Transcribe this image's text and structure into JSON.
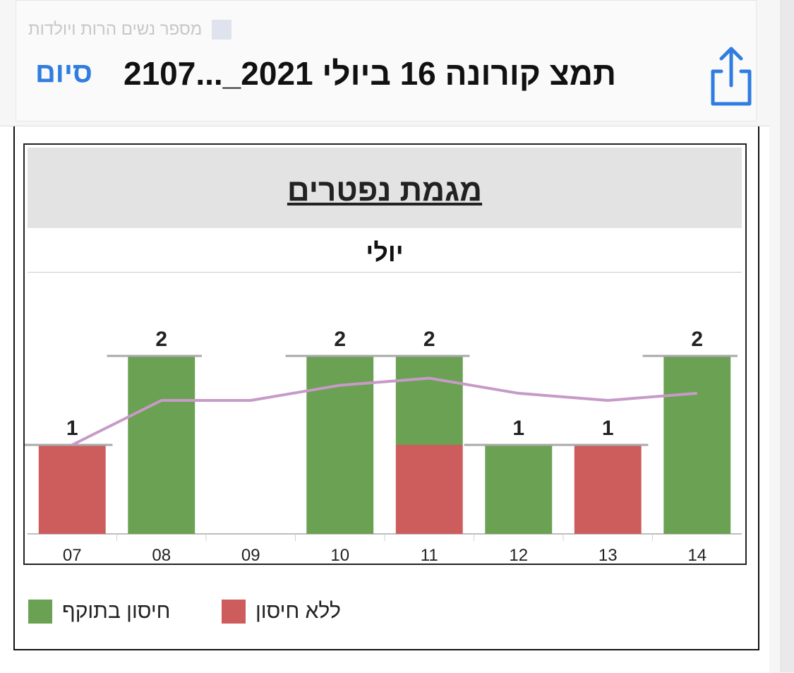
{
  "background": {
    "legend_rows": [
      {
        "label": "מספר נשים הרות ויולדות",
        "color": "#dfe3ee"
      },
      {
        "label": "",
        "color": "#f2c7c7"
      }
    ]
  },
  "header": {
    "done_label": "סיום",
    "title": "תמצ קורונה 16 ביולי 2021_...2107",
    "share_icon": "share-icon"
  },
  "chart_data": {
    "type": "bar",
    "title": "מגמת נפטרים",
    "subtitle": "יולי",
    "categories": [
      "07",
      "08",
      "09",
      "10",
      "11",
      "12",
      "13",
      "14"
    ],
    "series": [
      {
        "name": "ללא חיסון",
        "color": "#cd5c5c",
        "values": [
          1,
          0,
          0,
          0,
          1,
          0,
          1,
          0
        ]
      },
      {
        "name": "חיסון בתוקף",
        "color": "#6aa152",
        "values": [
          0,
          2,
          0,
          2,
          1,
          1,
          0,
          2
        ]
      }
    ],
    "totals": [
      1,
      2,
      null,
      2,
      2,
      1,
      1,
      2
    ],
    "trend": {
      "color": "#c79ac7",
      "values": [
        1,
        1.5,
        1.5,
        1.67,
        1.75,
        1.58,
        1.5,
        1.58
      ]
    },
    "ylim": [
      0,
      2.4
    ],
    "legend_position": "bottom-left"
  }
}
